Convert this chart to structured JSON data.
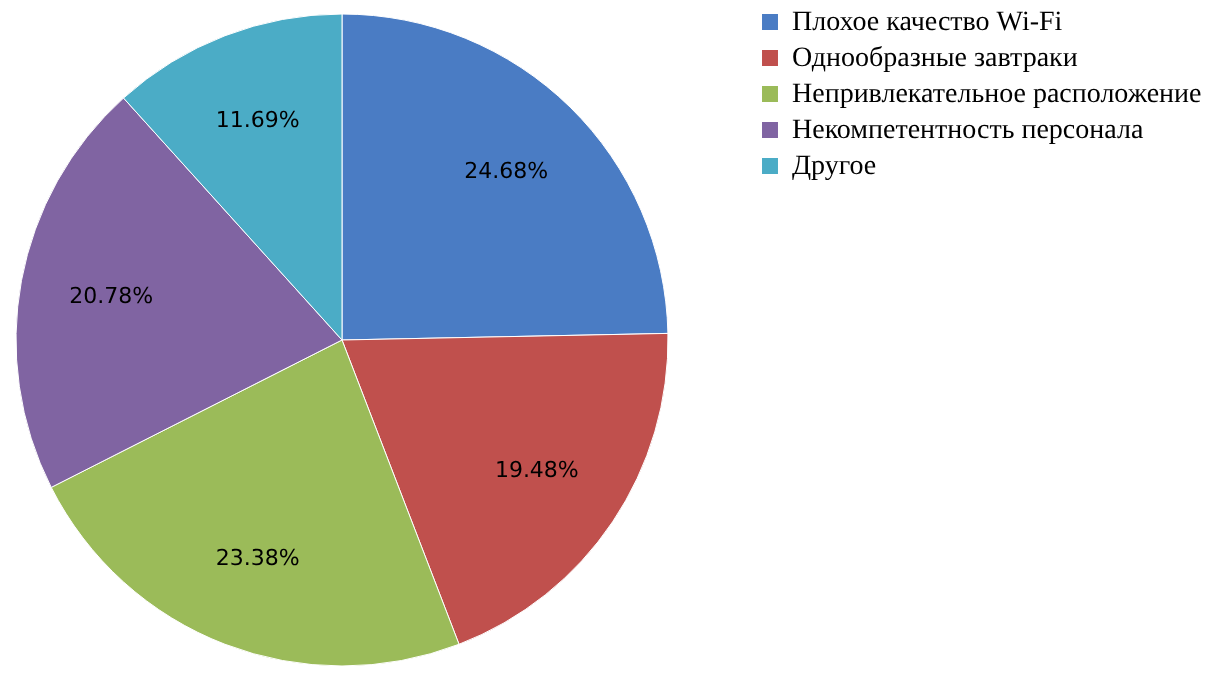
{
  "chart_data": {
    "type": "pie",
    "categories": [
      "Плохое качество Wi-Fi",
      "Однообразные завтраки",
      "Непривлекательное расположение",
      "Некомпетентность персонала",
      "Другое"
    ],
    "values": [
      24.68,
      19.48,
      23.38,
      20.78,
      11.69
    ],
    "value_labels": [
      "24.68%",
      "19.48%",
      "23.38%",
      "20.78%",
      "11.69%"
    ],
    "colors": [
      "#4a7cc4",
      "#c0504d",
      "#9bbb59",
      "#8064a2",
      "#4bacc6"
    ],
    "legend": "right"
  }
}
